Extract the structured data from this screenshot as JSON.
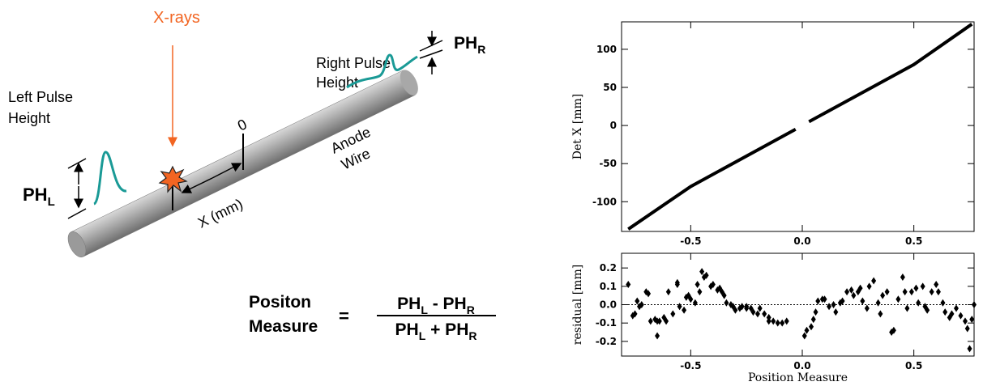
{
  "diagram": {
    "xrays": "X-rays",
    "right_pulse": [
      "Right Pulse",
      "Height"
    ],
    "left_pulse": [
      "Left Pulse",
      "Height"
    ],
    "ph_right": [
      "PH",
      "R"
    ],
    "ph_left": [
      "PH",
      "L"
    ],
    "origin": "0",
    "distance": "X (mm)",
    "wire": [
      "Anode",
      "Wire"
    ],
    "formula": {
      "label": [
        "Positon",
        "Measure"
      ],
      "equals": "=",
      "numerator": [
        "PH",
        "L",
        " - PH",
        "R"
      ],
      "denominator": [
        "PH",
        "L",
        " + PH",
        "R"
      ]
    }
  },
  "chart_data": [
    {
      "type": "line",
      "x": [
        -0.78,
        -0.5,
        -0.03,
        0,
        0.03,
        0.5,
        0.76
      ],
      "values": [
        -136,
        -80,
        -5,
        null,
        5,
        80,
        133
      ],
      "color": "#000000",
      "xlim": [
        -0.81,
        0.77
      ],
      "ylim": [
        -139,
        136
      ],
      "xticks": [
        -0.5,
        {
          "value": 0,
          "label": "0.0"
        },
        0.5
      ],
      "yticks": [
        -100,
        -50,
        0,
        50,
        100
      ],
      "ylabel": "Det X [mm]"
    },
    {
      "type": "scatter",
      "color": "#000000",
      "xlabel": "Position Measure",
      "ylabel": "residual [mm]",
      "xlim": [
        -0.81,
        0.77
      ],
      "ylim": [
        -0.28,
        0.28
      ],
      "xticks": [
        -0.5,
        {
          "value": 0,
          "label": "0.0"
        },
        0.5
      ],
      "yticks": [
        -0.2,
        -0.1,
        {
          "value": 0,
          "label": "0.0"
        },
        0.1,
        0.2
      ],
      "reference_line": 0,
      "x": [
        -0.78,
        -0.76,
        -0.75,
        -0.74,
        -0.73,
        -0.72,
        -0.7,
        -0.69,
        -0.68,
        -0.66,
        -0.65,
        -0.65,
        -0.64,
        -0.62,
        -0.61,
        -0.6,
        -0.58,
        -0.56,
        -0.56,
        -0.55,
        -0.53,
        -0.52,
        -0.51,
        -0.5,
        -0.48,
        -0.47,
        -0.46,
        -0.45,
        -0.44,
        -0.43,
        -0.41,
        -0.4,
        -0.38,
        -0.37,
        -0.36,
        -0.35,
        -0.34,
        -0.32,
        -0.31,
        -0.3,
        -0.28,
        -0.27,
        -0.25,
        -0.25,
        -0.23,
        -0.22,
        -0.2,
        -0.19,
        -0.17,
        -0.15,
        -0.15,
        -0.13,
        -0.11,
        -0.09,
        -0.07,
        0.01,
        0.02,
        0.04,
        0.05,
        0.06,
        0.07,
        0.09,
        0.1,
        0.12,
        0.14,
        0.15,
        0.17,
        0.18,
        0.2,
        0.22,
        0.23,
        0.25,
        0.26,
        0.27,
        0.29,
        0.3,
        0.32,
        0.34,
        0.35,
        0.36,
        0.38,
        0.4,
        0.41,
        0.43,
        0.45,
        0.46,
        0.47,
        0.49,
        0.51,
        0.52,
        0.54,
        0.55,
        0.56,
        0.58,
        0.6,
        0.61,
        0.63,
        0.64,
        0.66,
        0.67,
        0.69,
        0.71,
        0.73,
        0.74,
        0.75,
        0.76,
        0.77
      ],
      "values": [
        0.11,
        -0.06,
        -0.05,
        0.02,
        -0.01,
        0,
        0.07,
        0.06,
        -0.09,
        -0.08,
        -0.09,
        -0.17,
        -0.09,
        -0.07,
        -0.09,
        0.07,
        -0.05,
        0.11,
        0.12,
        -0.01,
        -0.03,
        0.04,
        0.05,
        0.03,
        0.01,
        0.11,
        0.07,
        0.18,
        0.15,
        0.16,
        0.1,
        0.11,
        0.08,
        0.09,
        0.07,
        0.05,
        0.01,
        0,
        -0.01,
        -0.03,
        -0.02,
        -0.01,
        -0.01,
        -0.02,
        -0.02,
        -0.04,
        -0.05,
        -0.02,
        -0.05,
        -0.09,
        -0.07,
        -0.09,
        -0.1,
        -0.1,
        -0.09,
        -0.17,
        -0.14,
        -0.12,
        -0.08,
        -0.04,
        0.02,
        0.03,
        0.03,
        -0.01,
        0,
        -0.04,
        0.01,
        0.02,
        0.07,
        0.08,
        0.05,
        0.07,
        0.09,
        0.02,
        -0.02,
        0.1,
        0.13,
        0.01,
        -0.05,
        0.05,
        0.07,
        -0.15,
        -0.14,
        0.03,
        0.15,
        0.07,
        -0.02,
        0.07,
        0.09,
        0.01,
        0.1,
        -0.01,
        -0.03,
        0.07,
        0.11,
        0.07,
        0.01,
        -0.04,
        -0.07,
        -0.05,
        -0.02,
        -0.06,
        -0.09,
        -0.13,
        -0.24,
        -0.08,
        0
      ]
    }
  ]
}
